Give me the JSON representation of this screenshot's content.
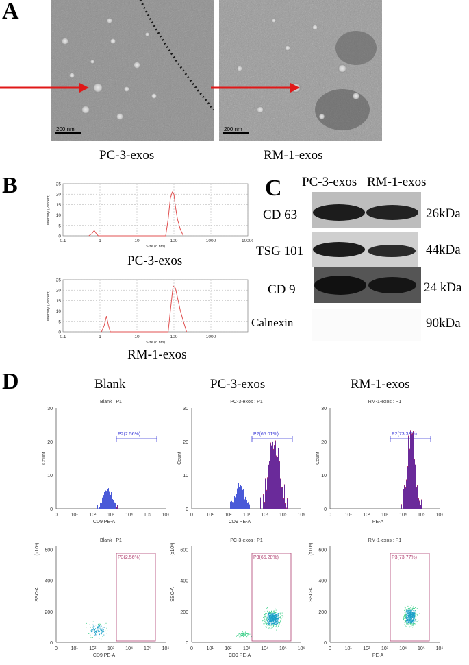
{
  "panel_a": {
    "letter": "A",
    "images": [
      {
        "caption": "PC-3-exos",
        "scale_bar": "200 nm"
      },
      {
        "caption": "RM-1-exos",
        "scale_bar": "200 nm"
      }
    ]
  },
  "panel_b": {
    "letter": "B",
    "axis_ylabel": "Intensity (Percent)",
    "axis_xlabel": "Size (d.nm)"
  },
  "panel_c": {
    "letter": "C",
    "col_headers": [
      "PC-3-exos",
      "RM-1-exos"
    ],
    "rows": [
      {
        "protein": "CD 63",
        "weight": "26kDa"
      },
      {
        "protein": "TSG 101",
        "weight": "44kDa"
      },
      {
        "protein": "CD 9",
        "weight": "24 kDa"
      },
      {
        "protein": "Calnexin",
        "weight": "90kDa"
      }
    ]
  },
  "panel_d": {
    "letter": "D",
    "col_headers": [
      "Blank",
      "PC-3-exos",
      "RM-1-exos"
    ],
    "hist_titles": [
      "Blank : P1",
      "PC-3-exos : P1",
      "RM-1-exos : P1"
    ],
    "hist_gates": [
      "P2(2.56%)",
      "P2(65.01%)",
      "P2(73.33%)"
    ],
    "hist_ylabel": "Count",
    "hist_xlabels": [
      "CD9 PE-A",
      "CD9 PE-A",
      "PE-A"
    ],
    "scatter_titles": [
      "Blank : P1",
      "PC-3-exos : P1",
      "RM-1-exos : P1"
    ],
    "scatter_gates": [
      "P3(2.56%)",
      "P3(65.28%)",
      "P3(73.77%)"
    ],
    "scatter_ylabel": "SSC-A",
    "scatter_yunit": "(x10⁴)",
    "scatter_xlabels": [
      "CD9 PE-A",
      "CD9 PE-A",
      "PE-A"
    ]
  },
  "chart_data": [
    {
      "type": "line",
      "title": "PC-3-exos",
      "xlabel": "Size (d.nm)",
      "ylabel": "Intensity (Percent)",
      "xscale": "log",
      "xlim": [
        0.1,
        10000
      ],
      "ylim": [
        0,
        25
      ],
      "xticks": [
        "0.1",
        "1",
        "10",
        "100",
        "1000",
        "10000"
      ],
      "yticks": [
        "0",
        "5",
        "10",
        "15",
        "20",
        "25"
      ],
      "grid": true,
      "series": [
        {
          "x": [
            0.5,
            0.6,
            0.7,
            0.8,
            0.9,
            60,
            70,
            80,
            90,
            100,
            110,
            125,
            150,
            180
          ],
          "y": [
            0,
            1,
            2.5,
            1,
            0,
            0,
            8,
            18,
            21,
            20,
            14,
            8,
            3,
            0
          ]
        }
      ]
    },
    {
      "type": "line",
      "title": "RM-1-exos",
      "xlabel": "Size (d.nm)",
      "ylabel": "Intensity (Percent)",
      "xscale": "log",
      "xlim": [
        0.1,
        10000
      ],
      "ylim": [
        0,
        25
      ],
      "xticks": [
        "0.1",
        "1",
        "10",
        "100",
        "1000"
      ],
      "yticks": [
        "0",
        "5",
        "10",
        "15",
        "20",
        "25"
      ],
      "grid": true,
      "series": [
        {
          "x": [
            1.1,
            1.3,
            1.5,
            1.7,
            1.9,
            70,
            80,
            95,
            110,
            130,
            150,
            180,
            220
          ],
          "y": [
            0,
            3,
            7.5,
            3,
            0,
            0,
            10,
            22,
            21,
            15,
            10,
            5,
            0
          ]
        }
      ]
    }
  ]
}
